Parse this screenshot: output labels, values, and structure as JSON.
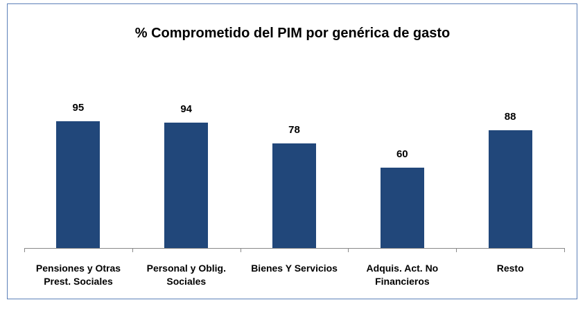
{
  "chart_data": {
    "type": "bar",
    "title": "% Comprometido del PIM por genérica de gasto",
    "categories": [
      "Pensiones y Otras Prest. Sociales",
      "Personal y Oblig. Sociales",
      "Bienes Y Servicios",
      "Adquis. Act. No Financieros",
      "Resto"
    ],
    "values": [
      95,
      94,
      78,
      60,
      88
    ],
    "color": "#21477a"
  }
}
